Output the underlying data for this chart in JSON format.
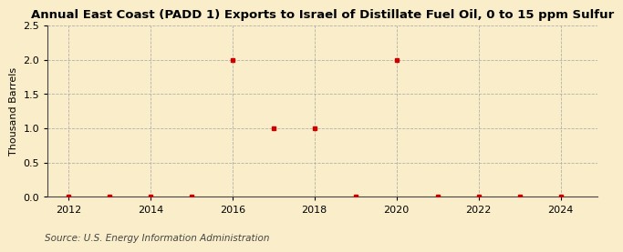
{
  "title": "Annual East Coast (PADD 1) Exports to Israel of Distillate Fuel Oil, 0 to 15 ppm Sulfur",
  "ylabel": "Thousand Barrels",
  "source": "Source: U.S. Energy Information Administration",
  "years": [
    2012,
    2013,
    2014,
    2015,
    2016,
    2017,
    2018,
    2019,
    2020,
    2021,
    2022,
    2023,
    2024
  ],
  "values": [
    0,
    0.0,
    0.0,
    0.0,
    2.0,
    1.0,
    1.0,
    0.0,
    2.0,
    0,
    0.0,
    0.0,
    0.0
  ],
  "marker_color": "#cc0000",
  "marker_size": 3.5,
  "background_color": "#faeeca",
  "grid_color": "#aaaaaa",
  "ylim": [
    0,
    2.5
  ],
  "yticks": [
    0.0,
    0.5,
    1.0,
    1.5,
    2.0,
    2.5
  ],
  "xlim": [
    2011.5,
    2024.9
  ],
  "xticks": [
    2012,
    2014,
    2016,
    2018,
    2020,
    2022,
    2024
  ],
  "title_fontsize": 9.5,
  "label_fontsize": 8,
  "tick_fontsize": 8,
  "source_fontsize": 7.5
}
